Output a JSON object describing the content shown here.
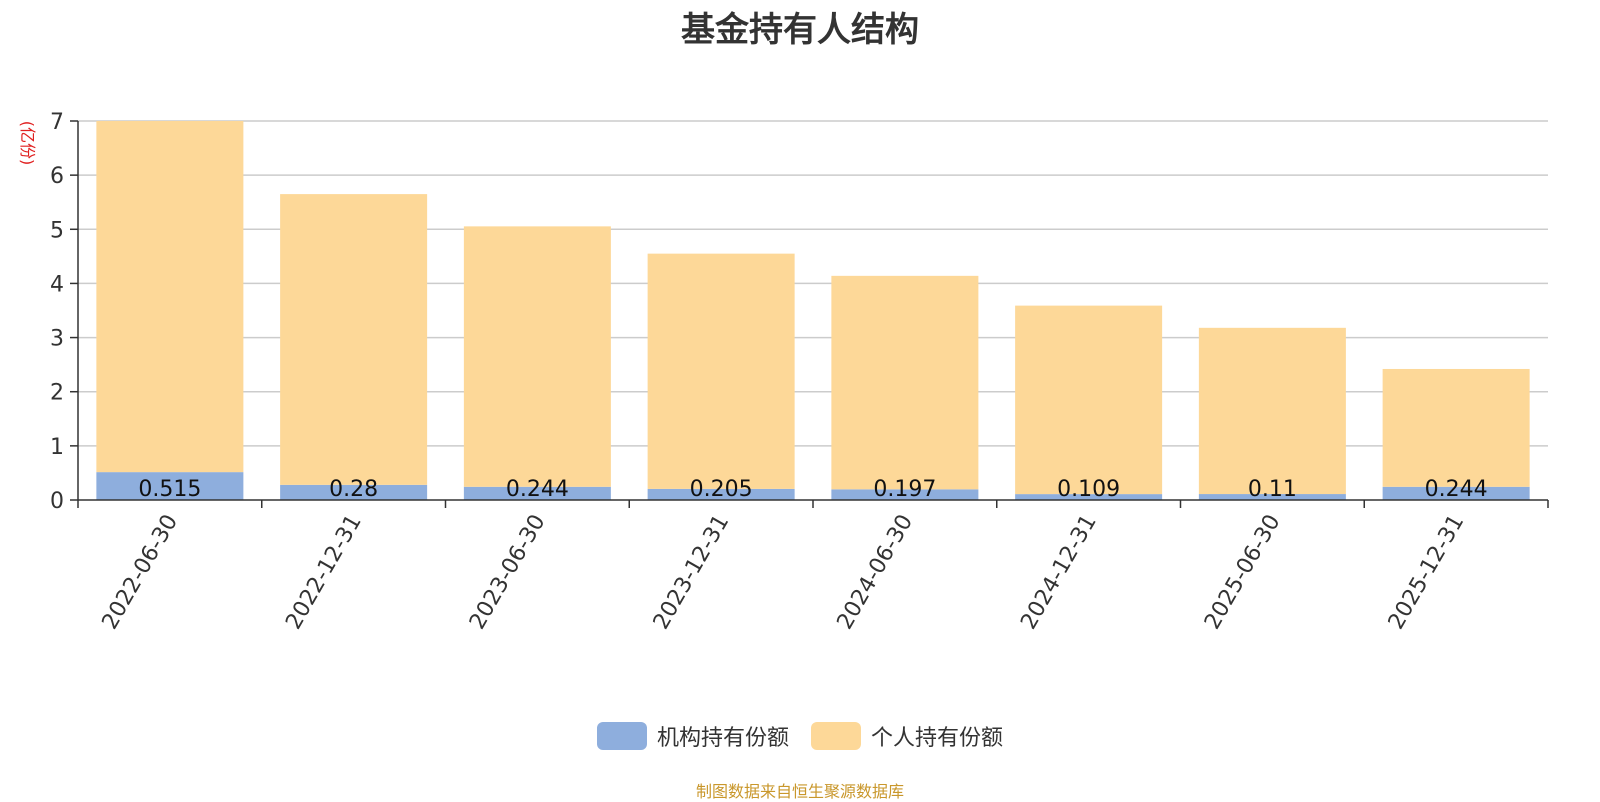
{
  "chart_data": {
    "type": "bar",
    "stacked": true,
    "title": "基金持有人结构",
    "ylabel": "(亿份)",
    "xlabel": "",
    "ylim": [
      0,
      7
    ],
    "yticks": [
      0,
      1,
      2,
      3,
      4,
      5,
      6,
      7
    ],
    "categories": [
      "2022-06-30",
      "2022-12-31",
      "2023-06-30",
      "2023-12-31",
      "2024-06-30",
      "2024-12-31",
      "2025-06-30",
      "2025-12-31"
    ],
    "series": [
      {
        "name": "机构持有份额",
        "color": "#8eaedd",
        "values": [
          0.515,
          0.28,
          0.244,
          0.205,
          0.197,
          0.109,
          0.11,
          0.244
        ],
        "labels": [
          "0.515",
          "0.28",
          "0.244",
          "0.205",
          "0.197",
          "0.109",
          "0.11",
          "0.244"
        ]
      },
      {
        "name": "个人持有份额",
        "color": "#fdd898",
        "values": [
          6.485,
          5.37,
          4.81,
          4.345,
          3.943,
          3.481,
          3.07,
          2.176
        ]
      }
    ],
    "grid": true,
    "legend_position": "bottom-center"
  },
  "footer": {
    "source_note": "制图数据来自恒生聚源数据库"
  },
  "colors": {
    "title": "#333333",
    "ylabel": "#e02020",
    "grid": "#cccccc",
    "axis": "#333333",
    "footer": "#c9972b"
  }
}
